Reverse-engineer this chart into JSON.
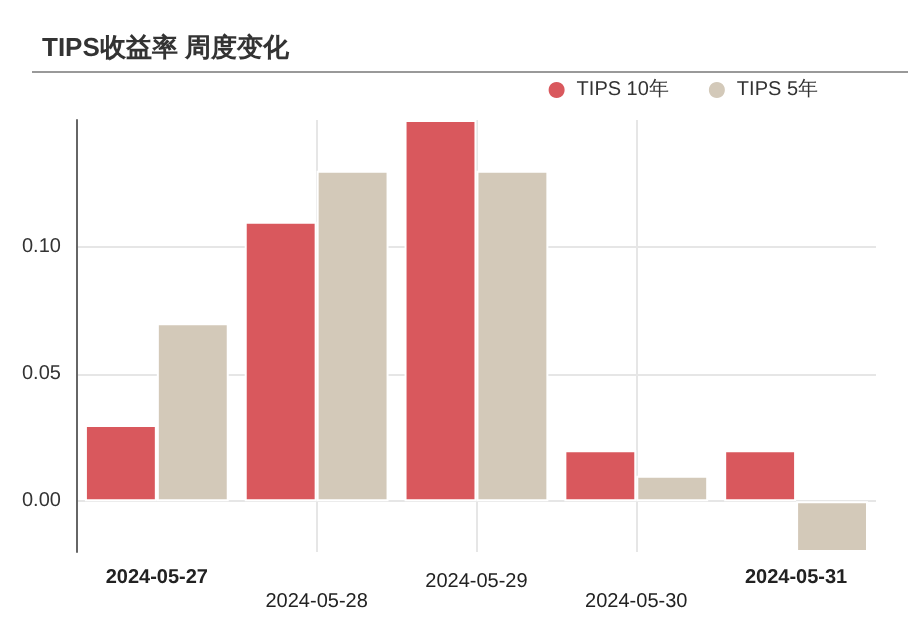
{
  "chart_data": {
    "type": "bar",
    "title": "TIPS收益率 周度变化",
    "categories": [
      "2024-05-27",
      "2024-05-28",
      "2024-05-29",
      "2024-05-30",
      "2024-05-31"
    ],
    "series": [
      {
        "name": "TIPS 10年",
        "color": "#d9585d",
        "values": [
          0.03,
          0.11,
          0.15,
          0.02,
          0.02
        ]
      },
      {
        "name": "TIPS 5年",
        "color": "#d3c9b9",
        "values": [
          0.07,
          0.13,
          0.13,
          0.01,
          -0.02
        ]
      }
    ],
    "ylim": [
      -0.02,
      0.15
    ],
    "yticks": [
      {
        "value": 0,
        "label": "0.00"
      },
      {
        "value": 0.05,
        "label": "0.05"
      },
      {
        "value": 0.1,
        "label": "0.10"
      }
    ],
    "grid": true,
    "legend": "top right"
  }
}
